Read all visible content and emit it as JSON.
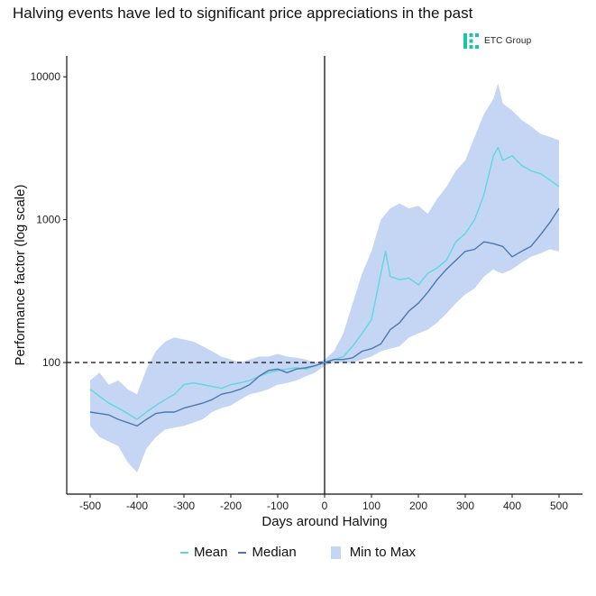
{
  "chart_data": {
    "type": "line",
    "title": "Halving events have led to significant price appreciations in the past",
    "xlabel": "Days around Halving",
    "ylabel": "Performance factor (log scale)",
    "y_scale": "log",
    "xlim": [
      -550,
      550
    ],
    "ylim": [
      12,
      14000
    ],
    "x_ticks": [
      -500,
      -400,
      -300,
      -200,
      -100,
      0,
      100,
      200,
      300,
      400,
      500
    ],
    "x_tick_labels": [
      "-500",
      "-400",
      "-300",
      "-200",
      "-100",
      "0",
      "100",
      "200",
      "300",
      "400",
      "500"
    ],
    "y_ticks": [
      100,
      1000,
      10000
    ],
    "y_tick_labels": [
      "100",
      "1000",
      "10000"
    ],
    "reference_lines": {
      "horizontal_dashed_y": 100,
      "vertical_solid_x": 0
    },
    "series": [
      {
        "name": "Mean",
        "color": "#5ed8df",
        "x": [
          -500,
          -480,
          -460,
          -440,
          -420,
          -400,
          -380,
          -360,
          -340,
          -320,
          -300,
          -280,
          -260,
          -240,
          -220,
          -200,
          -180,
          -160,
          -140,
          -120,
          -100,
          -80,
          -60,
          -40,
          -20,
          0,
          20,
          40,
          60,
          80,
          100,
          120,
          130,
          140,
          160,
          180,
          200,
          220,
          240,
          260,
          280,
          300,
          320,
          340,
          360,
          370,
          380,
          400,
          420,
          440,
          460,
          480,
          500
        ],
        "values": [
          65,
          58,
          52,
          48,
          44,
          40,
          45,
          50,
          55,
          60,
          70,
          72,
          70,
          68,
          66,
          70,
          72,
          75,
          80,
          85,
          88,
          90,
          92,
          90,
          95,
          100,
          105,
          110,
          130,
          160,
          200,
          420,
          600,
          400,
          380,
          390,
          350,
          420,
          460,
          520,
          700,
          800,
          1000,
          1500,
          2800,
          3200,
          2600,
          2800,
          2400,
          2200,
          2100,
          1900,
          1700
        ]
      },
      {
        "name": "Median",
        "color": "#4b78ad",
        "x": [
          -500,
          -480,
          -460,
          -440,
          -420,
          -400,
          -380,
          -360,
          -340,
          -320,
          -300,
          -280,
          -260,
          -240,
          -220,
          -200,
          -180,
          -160,
          -140,
          -120,
          -100,
          -80,
          -60,
          -40,
          -20,
          0,
          20,
          40,
          60,
          80,
          100,
          120,
          140,
          160,
          180,
          200,
          220,
          240,
          260,
          280,
          300,
          320,
          340,
          360,
          380,
          400,
          420,
          440,
          460,
          480,
          500
        ],
        "values": [
          45,
          44,
          43,
          40,
          38,
          36,
          40,
          44,
          45,
          45,
          48,
          50,
          52,
          55,
          60,
          62,
          65,
          70,
          80,
          88,
          90,
          85,
          90,
          92,
          95,
          100,
          105,
          105,
          108,
          120,
          125,
          135,
          170,
          190,
          230,
          260,
          310,
          380,
          450,
          520,
          600,
          620,
          700,
          680,
          650,
          550,
          600,
          650,
          780,
          950,
          1200
        ]
      }
    ],
    "band": {
      "name": "Min to Max",
      "color": "#c5d6f4",
      "x": [
        -500,
        -480,
        -460,
        -440,
        -420,
        -400,
        -380,
        -360,
        -340,
        -320,
        -300,
        -280,
        -260,
        -240,
        -220,
        -200,
        -180,
        -160,
        -140,
        -120,
        -100,
        -80,
        -60,
        -40,
        -20,
        0,
        20,
        40,
        60,
        80,
        100,
        120,
        140,
        160,
        180,
        200,
        220,
        240,
        260,
        280,
        300,
        320,
        340,
        360,
        370,
        380,
        400,
        420,
        440,
        460,
        480,
        500
      ],
      "upper": [
        75,
        85,
        70,
        75,
        65,
        60,
        90,
        120,
        140,
        150,
        145,
        140,
        130,
        120,
        110,
        105,
        100,
        105,
        110,
        110,
        115,
        110,
        108,
        105,
        100,
        105,
        120,
        160,
        260,
        420,
        600,
        1000,
        1200,
        1300,
        1200,
        1250,
        1100,
        1400,
        1700,
        2200,
        2600,
        3800,
        5500,
        7000,
        9000,
        6500,
        5800,
        5000,
        4500,
        4000,
        3800,
        3600
      ],
      "lower": [
        36,
        30,
        28,
        26,
        20,
        17,
        25,
        30,
        34,
        35,
        36,
        38,
        40,
        45,
        48,
        50,
        55,
        60,
        62,
        65,
        70,
        72,
        75,
        80,
        85,
        95,
        100,
        100,
        100,
        105,
        110,
        120,
        125,
        130,
        150,
        160,
        170,
        190,
        220,
        260,
        300,
        330,
        400,
        450,
        430,
        420,
        450,
        500,
        550,
        580,
        620,
        600
      ]
    },
    "legend": {
      "position": "bottom",
      "entries": [
        {
          "label": "Mean",
          "color": "#5ed8df"
        },
        {
          "label": "Median",
          "color": "#4b78ad"
        },
        {
          "label": "Min to Max",
          "color": "#c5d6f4"
        }
      ]
    },
    "logo_text": "ETC Group"
  }
}
